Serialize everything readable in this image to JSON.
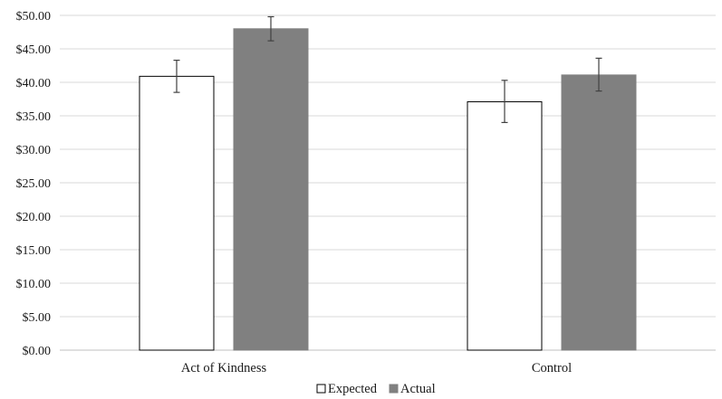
{
  "chart_data": {
    "type": "bar",
    "categories": [
      "Act of Kindness",
      "Control"
    ],
    "series": [
      {
        "name": "Expected",
        "values": [
          40.9,
          37.1
        ],
        "error_low": [
          38.5,
          34.0
        ],
        "error_high": [
          43.3,
          40.3
        ],
        "fill": "#ffffff",
        "stroke": "#000000"
      },
      {
        "name": "Actual",
        "values": [
          48.0,
          41.1
        ],
        "error_low": [
          46.2,
          38.7
        ],
        "error_high": [
          49.8,
          43.6
        ],
        "fill": "#808080",
        "stroke": "#808080"
      }
    ],
    "ylim": [
      0,
      50
    ],
    "y_ticks": [
      "$0.00",
      "$5.00",
      "$10.00",
      "$15.00",
      "$20.00",
      "$25.00",
      "$30.00",
      "$35.00",
      "$40.00",
      "$45.00",
      "$50.00"
    ],
    "y_tick_values": [
      0,
      5,
      10,
      15,
      20,
      25,
      30,
      35,
      40,
      45,
      50
    ],
    "grid": true,
    "legend_position": "bottom",
    "title": "",
    "xlabel": "",
    "ylabel": ""
  }
}
